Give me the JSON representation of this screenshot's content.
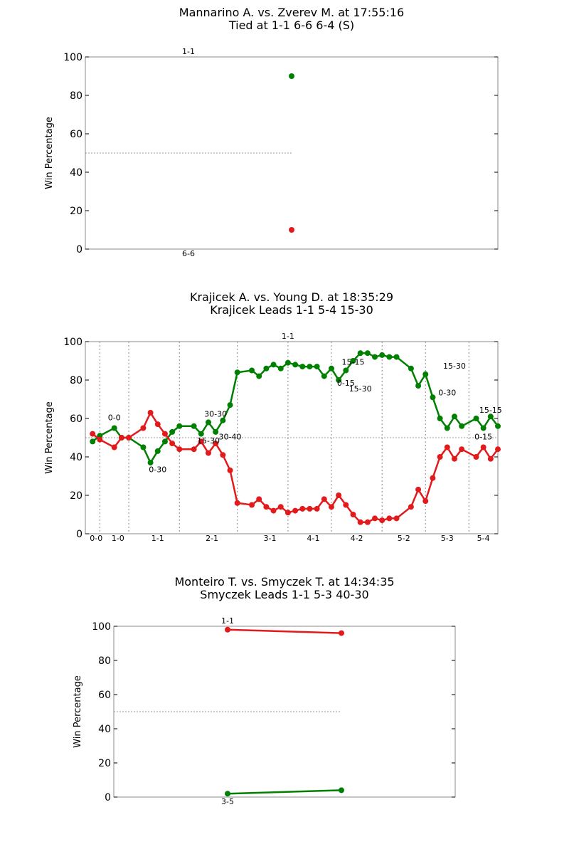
{
  "chart_data": [
    {
      "type": "line",
      "title": "Mannarino A. vs. Zverev M. at 17:55:16",
      "subtitle": "Tied at 1-1 6-6 6-4 (S)",
      "xlabel": "",
      "ylabel": "Win Percentage",
      "ylim": [
        0,
        100
      ],
      "yticks": [
        0,
        20,
        40,
        60,
        80,
        100
      ],
      "xlim": [
        0,
        58
      ],
      "midline": 50,
      "grid": false,
      "colors": {
        "series_a": "#008000",
        "series_b": "#e31a1c",
        "midline": "#999999"
      },
      "x": [
        29
      ],
      "series": [
        {
          "color": "#008000",
          "values": [
            90
          ]
        },
        {
          "color": "#e31a1c",
          "values": [
            10
          ]
        }
      ],
      "set_markers": [],
      "bottom_labels": [
        {
          "x": 14.5,
          "text": "6-6"
        }
      ],
      "top_labels": [
        {
          "x": 14.5,
          "text": "1-1"
        }
      ],
      "annotations": []
    },
    {
      "type": "line",
      "title": "Krajicek A. vs. Young D. at 18:35:29",
      "subtitle": "Krajicek Leads 1-1 5-4 15-30",
      "xlabel": "",
      "ylabel": "Win Percentage",
      "ylim": [
        0,
        100
      ],
      "yticks": [
        0,
        20,
        40,
        60,
        80,
        100
      ],
      "xlim": [
        -1,
        56
      ],
      "midline": 50,
      "grid": false,
      "colors": {
        "series_a": "#008000",
        "series_b": "#e31a1c",
        "midline": "#999999"
      },
      "x": [
        0,
        1,
        3,
        4,
        5,
        7,
        8,
        9,
        10,
        11,
        12,
        14,
        15,
        16,
        17,
        18,
        19,
        20,
        22,
        23,
        24,
        25,
        26,
        27,
        28,
        29,
        30,
        31,
        32,
        33,
        34,
        35,
        36,
        37,
        38,
        39,
        40,
        41,
        42,
        44,
        45,
        46,
        47,
        48,
        49,
        50,
        51,
        53,
        54,
        55,
        56
      ],
      "series": [
        {
          "color": "#008000",
          "values": [
            48,
            51,
            55,
            50,
            50,
            45,
            37,
            43,
            48,
            53,
            56,
            56,
            52,
            58,
            53,
            59,
            67,
            84,
            85,
            82,
            86,
            88,
            86,
            89,
            88,
            87,
            87,
            87,
            82,
            86,
            80,
            85,
            90,
            94,
            94,
            92,
            93,
            92,
            92,
            86,
            77,
            83,
            71,
            60,
            55,
            61,
            56,
            60,
            55,
            61,
            56
          ]
        },
        {
          "color": "#e31a1c",
          "values": [
            52,
            49,
            45,
            50,
            50,
            55,
            63,
            57,
            52,
            47,
            44,
            44,
            48,
            42,
            47,
            41,
            33,
            16,
            15,
            18,
            14,
            12,
            14,
            11,
            12,
            13,
            13,
            13,
            18,
            14,
            20,
            15,
            10,
            6,
            6,
            8,
            7,
            8,
            8,
            14,
            23,
            17,
            29,
            40,
            45,
            39,
            44,
            40,
            45,
            39,
            44
          ]
        }
      ],
      "set_markers": [
        1,
        5,
        12,
        20,
        27,
        33,
        40,
        46,
        52
      ],
      "bottom_labels": [
        {
          "x": 0.5,
          "text": "0-0"
        },
        {
          "x": 3.5,
          "text": "1-0"
        },
        {
          "x": 9,
          "text": "1-1"
        },
        {
          "x": 16.5,
          "text": "2-1"
        },
        {
          "x": 24.5,
          "text": "3-1"
        },
        {
          "x": 30.5,
          "text": "4-1"
        },
        {
          "x": 36.5,
          "text": "4-2"
        },
        {
          "x": 43,
          "text": "5-2"
        },
        {
          "x": 49,
          "text": "5-3"
        },
        {
          "x": 54,
          "text": "5-4"
        }
      ],
      "top_labels": [
        {
          "x": 27,
          "text": "1-1"
        }
      ],
      "annotations": [
        {
          "x": 3,
          "y": 59,
          "text": "0-0"
        },
        {
          "x": 9,
          "y": 32,
          "text": "0-30"
        },
        {
          "x": 17,
          "y": 61,
          "text": "30-30"
        },
        {
          "x": 16,
          "y": 47,
          "text": "15-30"
        },
        {
          "x": 19,
          "y": 49,
          "text": "30-40"
        },
        {
          "x": 36,
          "y": 88,
          "text": "15-15"
        },
        {
          "x": 35,
          "y": 77,
          "text": "0-15"
        },
        {
          "x": 37,
          "y": 74,
          "text": "15-30"
        },
        {
          "x": 50,
          "y": 86,
          "text": "15-30"
        },
        {
          "x": 49,
          "y": 72,
          "text": "0-30"
        },
        {
          "x": 55,
          "y": 63,
          "text": "15-15"
        },
        {
          "x": 54,
          "y": 49,
          "text": "0-15"
        }
      ]
    },
    {
      "type": "line",
      "title": "Monteiro T. vs. Smyczek T. at 14:34:35",
      "subtitle": "Smyczek Leads 1-1 5-3 40-30",
      "xlabel": "",
      "ylabel": "Win Percentage",
      "ylim": [
        0,
        100
      ],
      "yticks": [
        0,
        20,
        40,
        60,
        80,
        100
      ],
      "xlim": [
        -1,
        2
      ],
      "midline": 50,
      "grid": false,
      "colors": {
        "series_a": "#008000",
        "series_b": "#e31a1c",
        "midline": "#999999"
      },
      "x": [
        0,
        1
      ],
      "series": [
        {
          "color": "#e31a1c",
          "values": [
            98,
            96
          ]
        },
        {
          "color": "#008000",
          "values": [
            2,
            4
          ]
        }
      ],
      "set_markers": [],
      "bottom_labels": [
        {
          "x": 0,
          "text": "3-5"
        }
      ],
      "top_labels": [
        {
          "x": 0,
          "text": "1-1"
        }
      ],
      "annotations": []
    }
  ]
}
